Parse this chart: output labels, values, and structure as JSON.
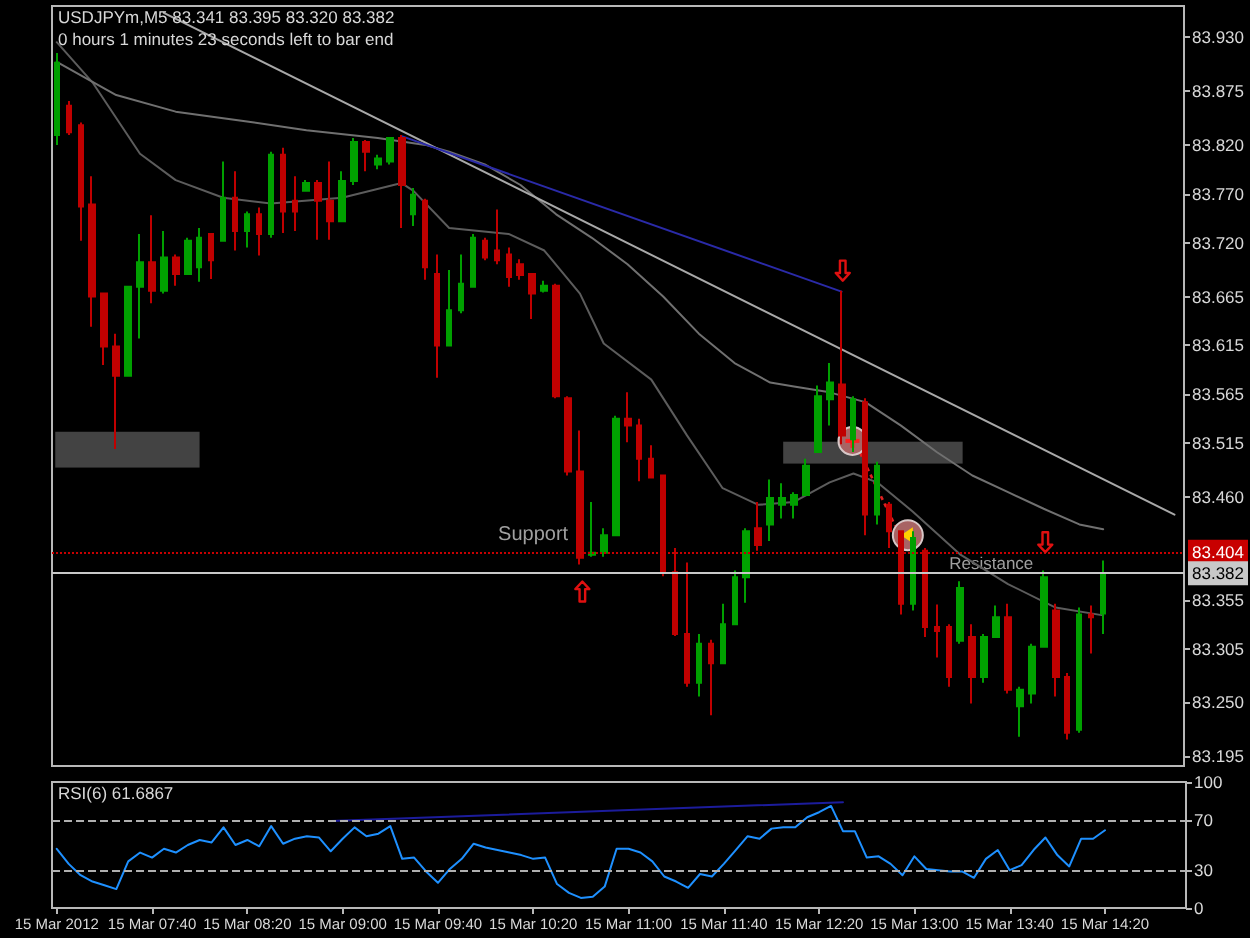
{
  "chart_data": [
    {
      "type": "candlestick",
      "title": "USDJPYm,M5 83.341 83.395 83.320 83.382",
      "subtitle": "0 hours 1 minutes 23 seconds left to bar end",
      "x": [
        "2012-03-15T07:00",
        "2012-03-15T07:05",
        "2012-03-15T07:10",
        "2012-03-15T07:15",
        "2012-03-15T07:20",
        "2012-03-15T07:25",
        "2012-03-15T07:30",
        "2012-03-15T07:35",
        "2012-03-15T07:40",
        "2012-03-15T07:45",
        "2012-03-15T07:50",
        "2012-03-15T07:55",
        "2012-03-15T08:00",
        "2012-03-15T08:05",
        "2012-03-15T08:10",
        "2012-03-15T08:15",
        "2012-03-15T08:20",
        "2012-03-15T08:25",
        "2012-03-15T08:30",
        "2012-03-15T08:35",
        "2012-03-15T08:40",
        "2012-03-15T08:45",
        "2012-03-15T08:50",
        "2012-03-15T08:55",
        "2012-03-15T09:00",
        "2012-03-15T09:05",
        "2012-03-15T09:10",
        "2012-03-15T09:15",
        "2012-03-15T09:20",
        "2012-03-15T09:25",
        "2012-03-15T09:30",
        "2012-03-15T09:35",
        "2012-03-15T09:40",
        "2012-03-15T09:45",
        "2012-03-15T09:50",
        "2012-03-15T09:55",
        "2012-03-15T10:00",
        "2012-03-15T10:05",
        "2012-03-15T10:10",
        "2012-03-15T10:15",
        "2012-03-15T10:20",
        "2012-03-15T10:25",
        "2012-03-15T10:30",
        "2012-03-15T10:35",
        "2012-03-15T10:40",
        "2012-03-15T10:45",
        "2012-03-15T10:50",
        "2012-03-15T10:55",
        "2012-03-15T11:00",
        "2012-03-15T11:05",
        "2012-03-15T11:10",
        "2012-03-15T11:15",
        "2012-03-15T11:20",
        "2012-03-15T11:25",
        "2012-03-15T11:30",
        "2012-03-15T11:35",
        "2012-03-15T11:40",
        "2012-03-15T11:45",
        "2012-03-15T11:50",
        "2012-03-15T11:55",
        "2012-03-15T12:00",
        "2012-03-15T12:05",
        "2012-03-15T12:10",
        "2012-03-15T12:15",
        "2012-03-15T12:20",
        "2012-03-15T12:25",
        "2012-03-15T12:30",
        "2012-03-15T12:35",
        "2012-03-15T12:40",
        "2012-03-15T12:45",
        "2012-03-15T12:50",
        "2012-03-15T12:55",
        "2012-03-15T13:00",
        "2012-03-15T13:05",
        "2012-03-15T13:10",
        "2012-03-15T13:15",
        "2012-03-15T13:20",
        "2012-03-15T13:25",
        "2012-03-15T13:30",
        "2012-03-15T13:35",
        "2012-03-15T13:40",
        "2012-03-15T13:45",
        "2012-03-15T13:50",
        "2012-03-15T13:55",
        "2012-03-15T14:00",
        "2012-03-15T14:05",
        "2012-03-15T14:10",
        "2012-03-15T14:15",
        "2012-03-15T14:20"
      ],
      "ohlc": [
        [
          83.83,
          83.914,
          83.82,
          83.904
        ],
        [
          83.86,
          83.865,
          83.83,
          83.833
        ],
        [
          83.84,
          83.843,
          83.722,
          83.757
        ],
        [
          83.759,
          83.788,
          83.634,
          83.665
        ],
        [
          83.668,
          83.668,
          83.595,
          83.614
        ],
        [
          83.614,
          83.627,
          83.509,
          83.584
        ],
        [
          83.584,
          83.675,
          83.584,
          83.675
        ],
        [
          83.675,
          83.729,
          83.622,
          83.7
        ],
        [
          83.7,
          83.748,
          83.658,
          83.671
        ],
        [
          83.671,
          83.732,
          83.668,
          83.705
        ],
        [
          83.705,
          83.708,
          83.676,
          83.688
        ],
        [
          83.688,
          83.725,
          83.687,
          83.722
        ],
        [
          83.695,
          83.735,
          83.68,
          83.725
        ],
        [
          83.729,
          83.73,
          83.683,
          83.702
        ],
        [
          83.722,
          83.803,
          83.722,
          83.766
        ],
        [
          83.766,
          83.793,
          83.712,
          83.732
        ],
        [
          83.732,
          83.752,
          83.715,
          83.749
        ],
        [
          83.749,
          83.756,
          83.707,
          83.729
        ],
        [
          83.729,
          83.813,
          83.725,
          83.81
        ],
        [
          83.81,
          83.817,
          83.73,
          83.752
        ],
        [
          83.763,
          83.788,
          83.732,
          83.752
        ],
        [
          83.773,
          83.784,
          83.773,
          83.781
        ],
        [
          83.781,
          83.784,
          83.723,
          83.763
        ],
        [
          83.763,
          83.803,
          83.723,
          83.742
        ],
        [
          83.742,
          83.793,
          83.742,
          83.783
        ],
        [
          83.783,
          83.827,
          83.779,
          83.823
        ],
        [
          83.823,
          83.825,
          83.793,
          83.813
        ],
        [
          83.8,
          83.81,
          83.795,
          83.806
        ],
        [
          83.803,
          83.827,
          83.8,
          83.827
        ],
        [
          83.827,
          83.83,
          83.735,
          83.779
        ],
        [
          83.749,
          83.776,
          83.737,
          83.769
        ],
        [
          83.763,
          83.765,
          83.682,
          83.695
        ],
        [
          83.688,
          83.708,
          83.582,
          83.615
        ],
        [
          83.615,
          83.692,
          83.614,
          83.651
        ],
        [
          83.651,
          83.708,
          83.648,
          83.678
        ],
        [
          83.675,
          83.729,
          83.675,
          83.725
        ],
        [
          83.722,
          83.725,
          83.702,
          83.705
        ],
        [
          83.712,
          83.754,
          83.698,
          83.702
        ],
        [
          83.708,
          83.715,
          83.675,
          83.685
        ],
        [
          83.698,
          83.703,
          83.682,
          83.687
        ],
        [
          83.688,
          83.688,
          83.642,
          83.668
        ],
        [
          83.671,
          83.681,
          83.669,
          83.676
        ],
        [
          83.676,
          83.678,
          83.561,
          83.563
        ],
        [
          83.561,
          83.563,
          83.482,
          83.486
        ],
        [
          83.486,
          83.528,
          83.391,
          83.398
        ],
        [
          83.401,
          83.455,
          83.399,
          83.403
        ],
        [
          83.403,
          83.428,
          83.399,
          83.421
        ],
        [
          83.421,
          83.543,
          83.421,
          83.54
        ],
        [
          83.54,
          83.567,
          83.516,
          83.533
        ],
        [
          83.533,
          83.54,
          83.476,
          83.499
        ],
        [
          83.499,
          83.513,
          83.479,
          83.48
        ],
        [
          83.482,
          83.482,
          83.379,
          83.383
        ],
        [
          83.383,
          83.408,
          83.318,
          83.32
        ],
        [
          83.32,
          83.393,
          83.266,
          83.27
        ],
        [
          83.27,
          83.32,
          83.256,
          83.31
        ],
        [
          83.31,
          83.314,
          83.237,
          83.29
        ],
        [
          83.29,
          83.351,
          83.29,
          83.33
        ],
        [
          83.33,
          83.385,
          83.33,
          83.378
        ],
        [
          83.378,
          83.428,
          83.352,
          83.425
        ],
        [
          83.428,
          83.455,
          83.405,
          83.411
        ],
        [
          83.432,
          83.478,
          83.415,
          83.459
        ],
        [
          83.452,
          83.474,
          83.438,
          83.459
        ],
        [
          83.452,
          83.465,
          83.438,
          83.462
        ],
        [
          83.462,
          83.499,
          83.462,
          83.492
        ],
        [
          83.506,
          83.574,
          83.506,
          83.563
        ],
        [
          83.56,
          83.597,
          83.533,
          83.577
        ],
        [
          83.575,
          83.671,
          83.514,
          83.523
        ],
        [
          83.519,
          83.563,
          83.506,
          83.56
        ],
        [
          83.557,
          83.561,
          83.421,
          83.442
        ],
        [
          83.442,
          83.496,
          83.432,
          83.492
        ],
        [
          83.452,
          83.455,
          83.408,
          83.425
        ],
        [
          83.425,
          83.425,
          83.34,
          83.351
        ],
        [
          83.351,
          83.425,
          83.344,
          83.418
        ],
        [
          83.405,
          83.408,
          83.317,
          83.327
        ],
        [
          83.327,
          83.35,
          83.296,
          83.323
        ],
        [
          83.327,
          83.33,
          83.266,
          83.276
        ],
        [
          83.313,
          83.374,
          83.31,
          83.367
        ],
        [
          83.317,
          83.33,
          83.249,
          83.276
        ],
        [
          83.276,
          83.32,
          83.27,
          83.317
        ],
        [
          83.317,
          83.349,
          83.317,
          83.337
        ],
        [
          83.337,
          83.351,
          83.259,
          83.263
        ],
        [
          83.246,
          83.266,
          83.215,
          83.263
        ],
        [
          83.259,
          83.31,
          83.249,
          83.307
        ],
        [
          83.307,
          83.385,
          83.307,
          83.378
        ],
        [
          83.344,
          83.351,
          83.256,
          83.276
        ],
        [
          83.276,
          83.28,
          83.212,
          83.219
        ],
        [
          83.222,
          83.347,
          83.219,
          83.34
        ],
        [
          83.34,
          83.349,
          83.3,
          83.337
        ],
        [
          83.341,
          83.395,
          83.32,
          83.382
        ]
      ],
      "colors": [
        "#00a000",
        "#c00000",
        "#c00000",
        "#c00000",
        "#c00000",
        "#c00000",
        "#00a000",
        "#00a000",
        "#c00000",
        "#00a000",
        "#c00000",
        "#00a000",
        "#00a000",
        "#c00000",
        "#00a000",
        "#c00000",
        "#00a000",
        "#c00000",
        "#00a000",
        "#c00000",
        "#c00000",
        "#00a000",
        "#c00000",
        "#c00000",
        "#00a000",
        "#00a000",
        "#c00000",
        "#00a000",
        "#00a000",
        "#c00000",
        "#00a000",
        "#c00000",
        "#c00000",
        "#00a000",
        "#00a000",
        "#00a000",
        "#c00000",
        "#c00000",
        "#c00000",
        "#c00000",
        "#c00000",
        "#00a000",
        "#c00000",
        "#c00000",
        "#c00000",
        "#00a000",
        "#00a000",
        "#00a000",
        "#c00000",
        "#c00000",
        "#c00000",
        "#c00000",
        "#c00000",
        "#c00000",
        "#00a000",
        "#c00000",
        "#00a000",
        "#00a000",
        "#00a000",
        "#c00000",
        "#00a000",
        "#00a000",
        "#00a000",
        "#00a000",
        "#00a000",
        "#00a000",
        "#c00000",
        "#00a000",
        "#c00000",
        "#00a000",
        "#c00000",
        "#c00000",
        "#00a000",
        "#c00000",
        "#c00000",
        "#c00000",
        "#00a000",
        "#c00000",
        "#00a000",
        "#00a000",
        "#c00000",
        "#00a000",
        "#00a000",
        "#00a000",
        "#c00000",
        "#c00000",
        "#00a000",
        "#c00000",
        "#00a000"
      ],
      "series": [
        {
          "type": "line",
          "color": "#5c5c5c",
          "x": [
            "2012-03-15T07:00",
            "2012-03-15T07:15",
            "2012-03-15T07:35",
            "2012-03-15T07:50",
            "2012-03-15T08:10",
            "2012-03-15T08:30",
            "2012-03-15T09:00",
            "2012-03-15T09:25",
            "2012-03-15T09:30",
            "2012-03-15T09:45",
            "2012-03-15T10:10",
            "2012-03-15T10:25",
            "2012-03-15T10:40",
            "2012-03-15T10:50",
            "2012-03-15T11:10",
            "2012-03-15T11:25",
            "2012-03-15T11:40",
            "2012-03-15T11:55",
            "2012-03-15T12:10",
            "2012-03-15T12:25",
            "2012-03-15T12:35",
            "2012-03-15T12:45",
            "2012-03-15T13:00",
            "2012-03-15T13:20",
            "2012-03-15T13:40",
            "2012-03-15T14:00",
            "2012-03-15T14:20"
          ],
          "values": [
            83.925,
            83.884,
            83.811,
            83.784,
            83.766,
            83.76,
            83.766,
            83.781,
            83.773,
            83.735,
            83.729,
            83.712,
            83.668,
            83.617,
            83.58,
            83.523,
            83.469,
            83.452,
            83.455,
            83.475,
            83.484,
            83.475,
            83.445,
            83.401,
            83.371,
            83.347,
            83.339
          ]
        },
        {
          "type": "line",
          "color": "#707070",
          "x": [
            "2012-03-15T07:00",
            "2012-03-15T07:25",
            "2012-03-15T07:50",
            "2012-03-15T08:20",
            "2012-03-15T08:45",
            "2012-03-15T09:15",
            "2012-03-15T09:35",
            "2012-03-15T09:45",
            "2012-03-15T10:00",
            "2012-03-15T10:15",
            "2012-03-15T10:30",
            "2012-03-15T10:45",
            "2012-03-15T11:00",
            "2012-03-15T11:15",
            "2012-03-15T11:30",
            "2012-03-15T11:45",
            "2012-03-15T12:00",
            "2012-03-15T12:10",
            "2012-03-15T12:25",
            "2012-03-15T12:40",
            "2012-03-15T12:55",
            "2012-03-15T13:10",
            "2012-03-15T13:25",
            "2012-03-15T13:40",
            "2012-03-15T13:55",
            "2012-03-15T14:10",
            "2012-03-15T14:20"
          ],
          "values": [
            83.905,
            83.871,
            83.854,
            83.844,
            83.835,
            83.827,
            83.82,
            83.813,
            83.8,
            83.779,
            83.749,
            83.725,
            83.698,
            83.665,
            83.627,
            83.597,
            83.577,
            83.573,
            83.567,
            83.557,
            83.533,
            83.506,
            83.482,
            83.465,
            83.448,
            83.432,
            83.427
          ]
        },
        {
          "type": "line",
          "color": "#a8a8a8",
          "x": [
            "2012-03-15T07:45",
            "2012-03-15T14:50"
          ],
          "values": [
            83.955,
            83.442
          ]
        },
        {
          "type": "line",
          "color": "#2a2aa8",
          "x": [
            "2012-03-15T09:25",
            "2012-03-15T12:30"
          ],
          "values": [
            83.829,
            83.67
          ]
        }
      ],
      "xlim": [
        "2012-03-15T06:58",
        "2012-03-15T14:54"
      ],
      "ylim": [
        83.185,
        83.962
      ],
      "yticks": [
        83.195,
        {
          "value": 83.25,
          "label": "83.250"
        },
        83.305,
        83.355,
        {
          "value": 83.46,
          "label": "83.460"
        },
        83.515,
        83.565,
        83.615,
        83.665,
        {
          "value": 83.72,
          "label": "83.720"
        },
        {
          "value": 83.77,
          "label": "83.770"
        },
        {
          "value": 83.82,
          "label": "83.820"
        },
        83.875,
        {
          "value": 83.93,
          "label": "83.930"
        }
      ],
      "ref_lines": [
        {
          "axis": "y",
          "value": 83.404,
          "label": "83.404",
          "color": "#c80000",
          "line_style": "dotted"
        },
        {
          "axis": "y",
          "value": 83.382,
          "label": "83.382",
          "color": "#c8c8c8",
          "line_style": "solid"
        }
      ],
      "annotations": [
        "Support",
        "Resistance"
      ],
      "tick_labels": "y"
    },
    {
      "type": "line",
      "title": "RSI(6) 61.6867",
      "x": [
        "2012-03-15T07:00",
        "2012-03-15T07:05",
        "2012-03-15T07:10",
        "2012-03-15T07:15",
        "2012-03-15T07:20",
        "2012-03-15T07:25",
        "2012-03-15T07:30",
        "2012-03-15T07:35",
        "2012-03-15T07:40",
        "2012-03-15T07:45",
        "2012-03-15T07:50",
        "2012-03-15T07:55",
        "2012-03-15T08:00",
        "2012-03-15T08:05",
        "2012-03-15T08:10",
        "2012-03-15T08:15",
        "2012-03-15T08:20",
        "2012-03-15T08:25",
        "2012-03-15T08:30",
        "2012-03-15T08:35",
        "2012-03-15T08:40",
        "2012-03-15T08:45",
        "2012-03-15T08:50",
        "2012-03-15T08:55",
        "2012-03-15T09:00",
        "2012-03-15T09:05",
        "2012-03-15T09:10",
        "2012-03-15T09:15",
        "2012-03-15T09:20",
        "2012-03-15T09:25",
        "2012-03-15T09:30",
        "2012-03-15T09:35",
        "2012-03-15T09:40",
        "2012-03-15T09:45",
        "2012-03-15T09:50",
        "2012-03-15T09:55",
        "2012-03-15T10:00",
        "2012-03-15T10:05",
        "2012-03-15T10:10",
        "2012-03-15T10:15",
        "2012-03-15T10:20",
        "2012-03-15T10:25",
        "2012-03-15T10:30",
        "2012-03-15T10:35",
        "2012-03-15T10:40",
        "2012-03-15T10:45",
        "2012-03-15T10:50",
        "2012-03-15T10:55",
        "2012-03-15T11:00",
        "2012-03-15T11:05",
        "2012-03-15T11:10",
        "2012-03-15T11:15",
        "2012-03-15T11:20",
        "2012-03-15T11:25",
        "2012-03-15T11:30",
        "2012-03-15T11:35",
        "2012-03-15T11:40",
        "2012-03-15T11:45",
        "2012-03-15T11:50",
        "2012-03-15T11:55",
        "2012-03-15T12:00",
        "2012-03-15T12:05",
        "2012-03-15T12:10",
        "2012-03-15T12:15",
        "2012-03-15T12:20",
        "2012-03-15T12:25",
        "2012-03-15T12:30",
        "2012-03-15T12:35",
        "2012-03-15T12:40",
        "2012-03-15T12:45",
        "2012-03-15T12:50",
        "2012-03-15T12:55",
        "2012-03-15T13:00",
        "2012-03-15T13:05",
        "2012-03-15T13:10",
        "2012-03-15T13:15",
        "2012-03-15T13:20",
        "2012-03-15T13:25",
        "2012-03-15T13:30",
        "2012-03-15T13:35",
        "2012-03-15T13:40",
        "2012-03-15T13:45",
        "2012-03-15T13:50",
        "2012-03-15T13:55",
        "2012-03-15T14:00",
        "2012-03-15T14:05",
        "2012-03-15T14:10",
        "2012-03-15T14:15",
        "2012-03-15T14:20"
      ],
      "series": [
        {
          "color": "#1e90ff",
          "values": [
            47,
            35,
            26,
            21,
            18,
            15,
            37,
            44,
            40,
            47,
            44,
            50,
            54,
            52,
            64,
            50,
            54,
            49,
            65,
            51,
            55,
            57,
            56,
            45,
            55,
            64,
            57,
            59,
            65,
            39,
            40,
            29,
            20,
            31,
            39,
            51,
            48,
            46,
            44,
            42,
            39,
            40,
            19,
            12,
            8,
            9,
            17,
            47,
            47,
            44,
            37,
            25,
            21,
            16,
            27,
            25,
            35,
            46,
            57,
            55,
            63,
            64,
            64,
            72,
            76,
            81,
            61,
            61,
            40,
            41,
            35,
            26,
            41,
            31,
            30,
            29,
            29,
            24,
            39,
            46,
            30,
            34,
            46,
            56,
            42,
            33,
            55,
            55,
            61.6867
          ]
        },
        {
          "type": "line",
          "color": "#1c1c9c",
          "x": [
            "2012-03-15T08:55",
            "2012-03-15T12:30"
          ],
          "values": [
            69,
            84
          ]
        }
      ],
      "xlim": [
        "2012-03-15T06:58",
        "2012-03-15T14:54"
      ],
      "xticks": [
        {
          "value": "2012-03-15T07:00",
          "label": "15 Mar 2012"
        },
        {
          "value": "2012-03-15T07:40",
          "label": "15 Mar 07:40"
        },
        {
          "value": "2012-03-15T08:20",
          "label": "15 Mar 08:20"
        },
        {
          "value": "2012-03-15T09:00",
          "label": "15 Mar 09:00"
        },
        {
          "value": "2012-03-15T09:40",
          "label": "15 Mar 09:40"
        },
        {
          "value": "2012-03-15T10:20",
          "label": "15 Mar 10:20"
        },
        {
          "value": "2012-03-15T11:00",
          "label": "15 Mar 11:00"
        },
        {
          "value": "2012-03-15T11:40",
          "label": "15 Mar 11:40"
        },
        {
          "value": "2012-03-15T12:20",
          "label": "15 Mar 12:20"
        },
        {
          "value": "2012-03-15T13:00",
          "label": "15 Mar 13:00"
        },
        {
          "value": "2012-03-15T13:40",
          "label": "15 Mar 13:40"
        },
        {
          "value": "2012-03-15T14:20",
          "label": "15 Mar 14:20"
        }
      ],
      "ylim": [
        0,
        100
      ],
      "yticks": [
        0,
        30,
        70,
        100
      ],
      "ref_lines": [
        {
          "axis": "y",
          "value": 70,
          "color": "#b0b0b0",
          "line_style": "dashed"
        },
        {
          "axis": "y",
          "value": 30,
          "color": "#b0b0b0",
          "line_style": "dashed"
        }
      ]
    }
  ]
}
